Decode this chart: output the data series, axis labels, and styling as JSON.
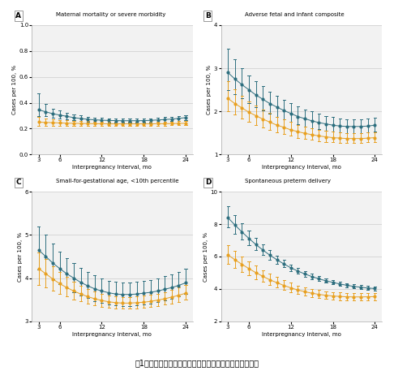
{
  "panel_labels": [
    "A",
    "B",
    "C",
    "D"
  ],
  "panel_titles": [
    "Maternal mortality or severe morbidity",
    "Adverse fetal and infant composite",
    "Small-for-gestational age, <10th percentile",
    "Spontaneous preterm delivery"
  ],
  "xlabel": "Interpregnancy Interval, mo",
  "ylabel": "Cases per 100, %",
  "xticks": [
    3,
    6,
    12,
    18,
    24
  ],
  "x_months": [
    3,
    4,
    5,
    6,
    7,
    8,
    9,
    10,
    11,
    12,
    13,
    14,
    15,
    16,
    17,
    18,
    19,
    20,
    21,
    22,
    23,
    24
  ],
  "panel_A": {
    "ylim": [
      0,
      1.0
    ],
    "yticks": [
      0,
      0.2,
      0.4,
      0.6,
      0.8,
      1.0
    ],
    "dark_y": [
      0.345,
      0.33,
      0.315,
      0.305,
      0.295,
      0.285,
      0.278,
      0.272,
      0.268,
      0.265,
      0.263,
      0.262,
      0.261,
      0.261,
      0.261,
      0.262,
      0.264,
      0.267,
      0.27,
      0.274,
      0.279,
      0.285
    ],
    "dark_lo": [
      0.3,
      0.295,
      0.285,
      0.278,
      0.272,
      0.265,
      0.26,
      0.255,
      0.252,
      0.25,
      0.248,
      0.247,
      0.246,
      0.246,
      0.246,
      0.247,
      0.249,
      0.251,
      0.254,
      0.258,
      0.262,
      0.268
    ],
    "dark_hi": [
      0.47,
      0.39,
      0.355,
      0.34,
      0.325,
      0.312,
      0.302,
      0.293,
      0.287,
      0.282,
      0.279,
      0.278,
      0.277,
      0.277,
      0.278,
      0.279,
      0.281,
      0.284,
      0.288,
      0.293,
      0.299,
      0.306
    ],
    "orange_y": [
      0.25,
      0.248,
      0.246,
      0.244,
      0.242,
      0.241,
      0.24,
      0.239,
      0.238,
      0.238,
      0.237,
      0.237,
      0.237,
      0.237,
      0.237,
      0.237,
      0.237,
      0.238,
      0.238,
      0.239,
      0.24,
      0.241
    ],
    "orange_lo": [
      0.22,
      0.222,
      0.223,
      0.224,
      0.224,
      0.224,
      0.224,
      0.224,
      0.224,
      0.224,
      0.224,
      0.224,
      0.224,
      0.224,
      0.224,
      0.224,
      0.224,
      0.224,
      0.224,
      0.225,
      0.225,
      0.226
    ],
    "orange_hi": [
      0.29,
      0.278,
      0.272,
      0.267,
      0.263,
      0.261,
      0.259,
      0.257,
      0.255,
      0.254,
      0.253,
      0.252,
      0.252,
      0.252,
      0.252,
      0.252,
      0.252,
      0.253,
      0.254,
      0.255,
      0.257,
      0.259
    ]
  },
  "panel_B": {
    "ylim": [
      1.0,
      4.0
    ],
    "yticks": [
      1,
      2,
      3,
      4
    ],
    "dark_y": [
      2.9,
      2.75,
      2.62,
      2.5,
      2.38,
      2.28,
      2.18,
      2.1,
      2.02,
      1.95,
      1.88,
      1.83,
      1.78,
      1.74,
      1.71,
      1.68,
      1.66,
      1.65,
      1.65,
      1.65,
      1.66,
      1.68
    ],
    "dark_lo": [
      2.5,
      2.4,
      2.3,
      2.2,
      2.1,
      2.02,
      1.94,
      1.87,
      1.81,
      1.75,
      1.7,
      1.65,
      1.61,
      1.58,
      1.55,
      1.53,
      1.51,
      1.5,
      1.5,
      1.5,
      1.51,
      1.53
    ],
    "dark_hi": [
      3.45,
      3.2,
      3.0,
      2.84,
      2.7,
      2.58,
      2.46,
      2.36,
      2.27,
      2.19,
      2.12,
      2.05,
      2.0,
      1.95,
      1.9,
      1.87,
      1.84,
      1.82,
      1.81,
      1.82,
      1.83,
      1.85
    ],
    "orange_y": [
      2.3,
      2.18,
      2.08,
      1.98,
      1.9,
      1.82,
      1.75,
      1.68,
      1.63,
      1.57,
      1.53,
      1.49,
      1.46,
      1.43,
      1.41,
      1.39,
      1.38,
      1.37,
      1.37,
      1.37,
      1.38,
      1.39
    ],
    "orange_lo": [
      2.0,
      1.92,
      1.84,
      1.76,
      1.69,
      1.63,
      1.57,
      1.52,
      1.47,
      1.43,
      1.39,
      1.36,
      1.34,
      1.31,
      1.29,
      1.28,
      1.27,
      1.27,
      1.27,
      1.27,
      1.28,
      1.29
    ],
    "orange_hi": [
      2.7,
      2.52,
      2.37,
      2.23,
      2.13,
      2.04,
      1.96,
      1.88,
      1.81,
      1.75,
      1.69,
      1.65,
      1.61,
      1.57,
      1.55,
      1.53,
      1.51,
      1.5,
      1.5,
      1.5,
      1.51,
      1.52
    ]
  },
  "panel_C": {
    "ylim": [
      3.0,
      6.0
    ],
    "yticks": [
      3,
      4,
      5,
      6
    ],
    "dark_y": [
      4.65,
      4.5,
      4.35,
      4.22,
      4.1,
      4.0,
      3.9,
      3.82,
      3.75,
      3.7,
      3.66,
      3.63,
      3.62,
      3.62,
      3.63,
      3.65,
      3.67,
      3.7,
      3.74,
      3.78,
      3.83,
      3.89
    ],
    "dark_lo": [
      4.2,
      4.08,
      3.97,
      3.86,
      3.77,
      3.68,
      3.6,
      3.53,
      3.47,
      3.43,
      3.39,
      3.37,
      3.36,
      3.36,
      3.37,
      3.39,
      3.41,
      3.44,
      3.48,
      3.52,
      3.57,
      3.63
    ],
    "dark_hi": [
      5.2,
      5.0,
      4.8,
      4.62,
      4.47,
      4.35,
      4.23,
      4.14,
      4.06,
      3.99,
      3.94,
      3.91,
      3.89,
      3.89,
      3.91,
      3.93,
      3.96,
      4.0,
      4.04,
      4.09,
      4.15,
      4.22
    ],
    "orange_y": [
      4.22,
      4.1,
      3.98,
      3.87,
      3.78,
      3.7,
      3.63,
      3.57,
      3.52,
      3.48,
      3.45,
      3.43,
      3.42,
      3.42,
      3.43,
      3.44,
      3.46,
      3.49,
      3.52,
      3.56,
      3.6,
      3.65
    ],
    "orange_lo": [
      3.85,
      3.78,
      3.7,
      3.63,
      3.57,
      3.51,
      3.46,
      3.41,
      3.37,
      3.34,
      3.31,
      3.3,
      3.29,
      3.29,
      3.3,
      3.31,
      3.33,
      3.35,
      3.38,
      3.41,
      3.45,
      3.5
    ],
    "orange_hi": [
      4.6,
      4.45,
      4.28,
      4.14,
      4.02,
      3.91,
      3.82,
      3.75,
      3.69,
      3.63,
      3.59,
      3.57,
      3.56,
      3.56,
      3.57,
      3.59,
      3.61,
      3.64,
      3.68,
      3.72,
      3.78,
      3.84
    ]
  },
  "panel_D": {
    "ylim": [
      2.0,
      10.0
    ],
    "yticks": [
      2,
      4,
      6,
      8,
      10
    ],
    "dark_y": [
      8.4,
      7.95,
      7.52,
      7.12,
      6.74,
      6.4,
      6.08,
      5.8,
      5.54,
      5.3,
      5.1,
      4.92,
      4.76,
      4.62,
      4.5,
      4.4,
      4.3,
      4.22,
      4.15,
      4.1,
      4.05,
      4.02
    ],
    "dark_lo": [
      7.8,
      7.42,
      7.06,
      6.72,
      6.4,
      6.1,
      5.82,
      5.56,
      5.33,
      5.12,
      4.93,
      4.76,
      4.61,
      4.48,
      4.37,
      4.27,
      4.18,
      4.1,
      4.04,
      3.98,
      3.94,
      3.91
    ],
    "dark_hi": [
      9.1,
      8.58,
      8.08,
      7.6,
      7.16,
      6.75,
      6.38,
      6.07,
      5.78,
      5.52,
      5.3,
      5.11,
      4.94,
      4.79,
      4.66,
      4.55,
      4.45,
      4.36,
      4.29,
      4.23,
      4.18,
      4.14
    ],
    "orange_y": [
      6.1,
      5.8,
      5.52,
      5.25,
      5.0,
      4.77,
      4.56,
      4.38,
      4.21,
      4.06,
      3.93,
      3.82,
      3.73,
      3.66,
      3.6,
      3.56,
      3.53,
      3.51,
      3.5,
      3.5,
      3.51,
      3.52
    ],
    "orange_lo": [
      5.55,
      5.3,
      5.06,
      4.83,
      4.61,
      4.42,
      4.23,
      4.07,
      3.92,
      3.79,
      3.68,
      3.58,
      3.49,
      3.43,
      3.37,
      3.33,
      3.3,
      3.29,
      3.28,
      3.28,
      3.29,
      3.3
    ],
    "orange_hi": [
      6.7,
      6.35,
      6.01,
      5.7,
      5.43,
      5.17,
      4.93,
      4.72,
      4.54,
      4.37,
      4.21,
      4.09,
      3.99,
      3.92,
      3.85,
      3.8,
      3.77,
      3.75,
      3.74,
      3.74,
      3.75,
      3.76
    ]
  },
  "dark_color": "#2d6e7e",
  "orange_color": "#e8a020",
  "grid_color": "#cccccc",
  "bg_color": "#f2f2f2",
  "caption": "图1：不同妊娠间隔各项结局的（未）调整的预测绝对风险"
}
